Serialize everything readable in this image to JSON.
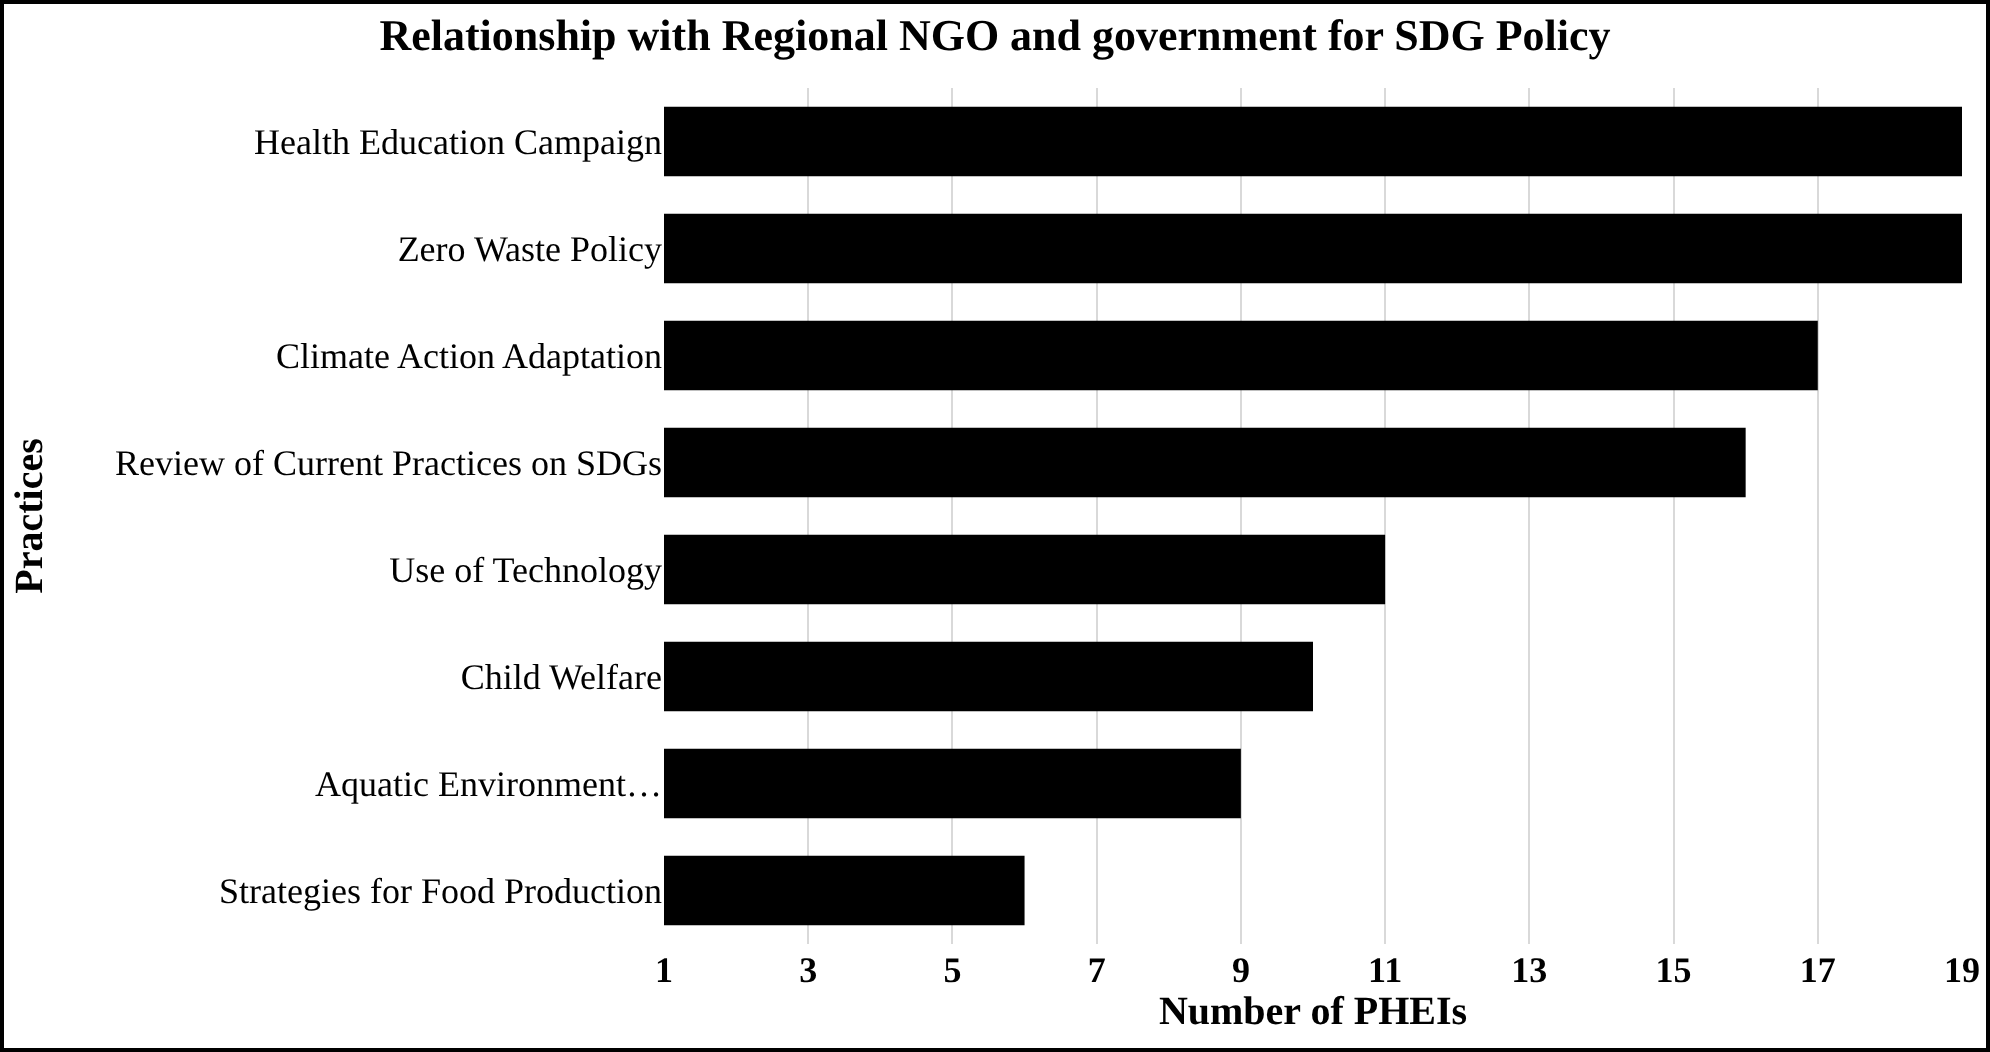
{
  "chart_data": {
    "type": "bar",
    "orientation": "horizontal",
    "title": "Relationship with Regional NGO and government for SDG Policy",
    "xlabel": "Number of PHEIs",
    "ylabel": "Practices",
    "categories": [
      "Health Education Campaign",
      "Zero Waste Policy",
      "Climate Action Adaptation",
      "Review of Current Practices on SDGs",
      "Use of Technology",
      "Child Welfare",
      "Aquatic Environment…",
      "Strategies for Food Production"
    ],
    "values": [
      19,
      19,
      17,
      16,
      11,
      10,
      9,
      6
    ],
    "color": "#000000",
    "xlim": [
      1,
      19
    ],
    "xticks": [
      1,
      3,
      5,
      7,
      9,
      11,
      13,
      15,
      17,
      19
    ],
    "grid": "x",
    "legend": false
  }
}
